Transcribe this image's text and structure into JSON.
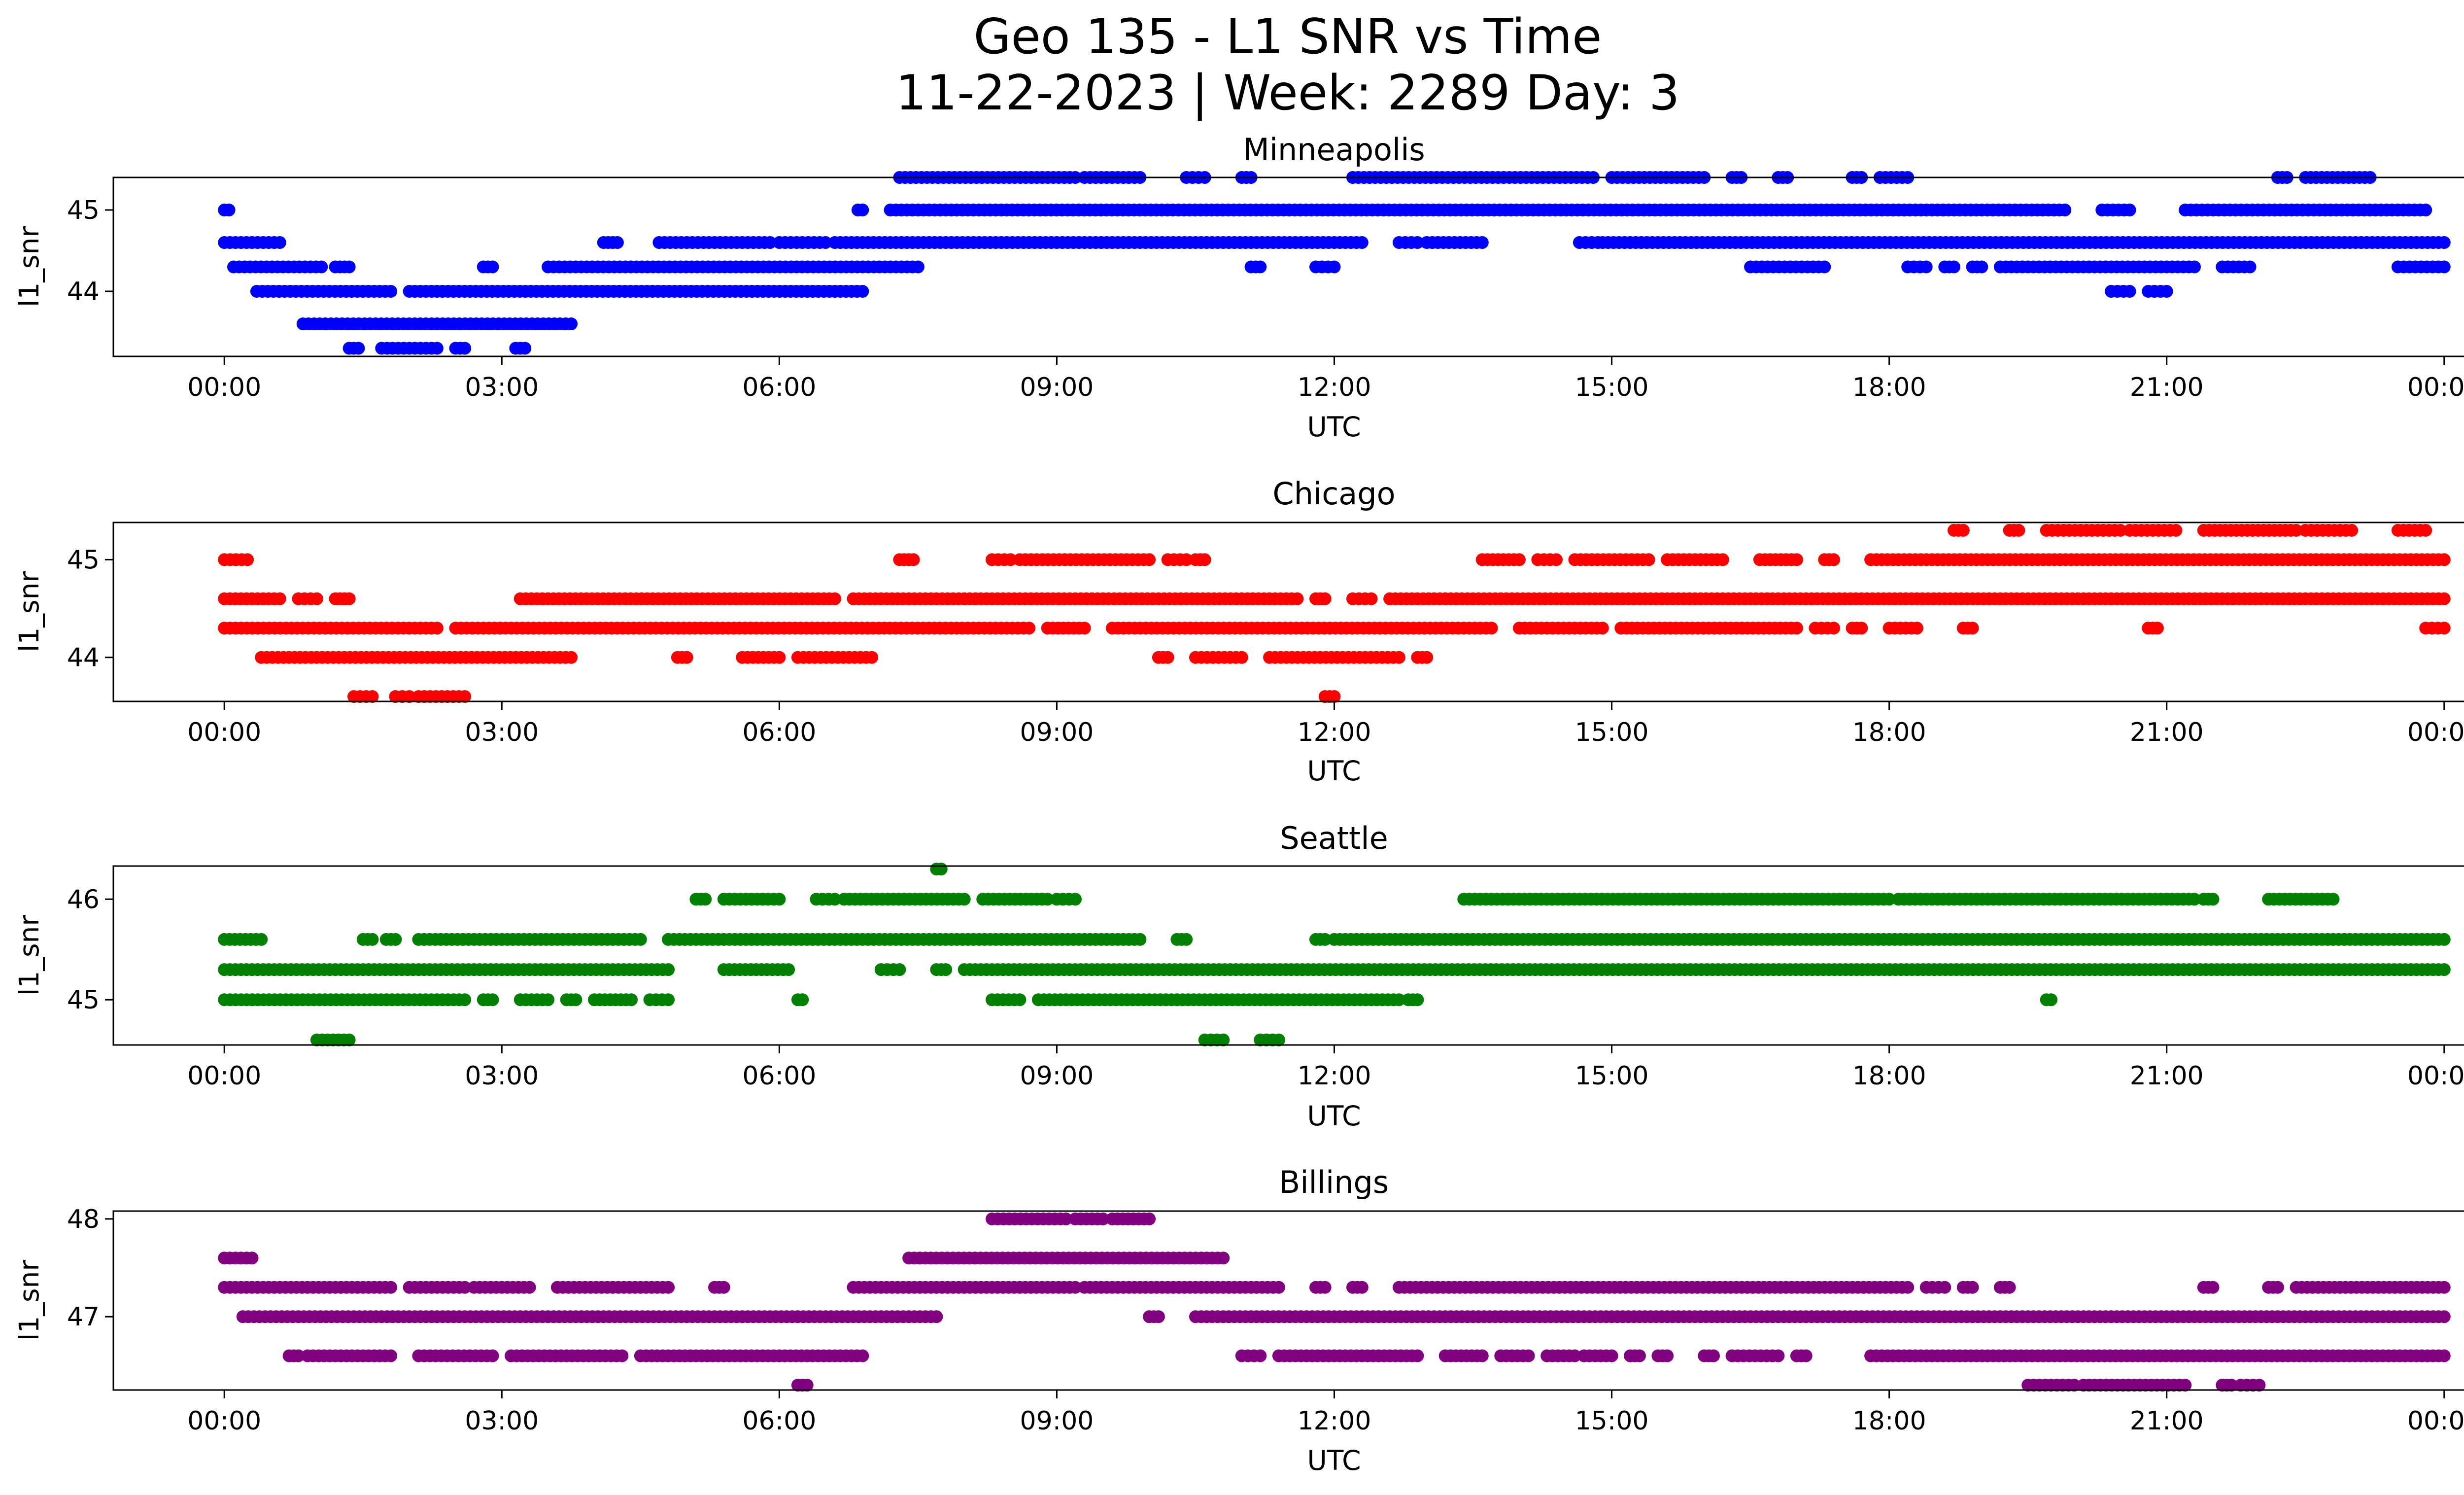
{
  "figure": {
    "title_line1": "Geo 135 - L1 SNR vs Time",
    "title_line2": "11-22-2023 | Week: 2289 Day: 3"
  },
  "chart_data": [
    {
      "type": "scatter",
      "title": "Minneapolis",
      "xlabel": "UTC",
      "ylabel": "l1_snr",
      "color": "#0000ff",
      "xlim": [
        -1.2,
        25.2
      ],
      "ylim": [
        43.2,
        45.4
      ],
      "xticks": [
        0,
        3,
        6,
        9,
        12,
        15,
        18,
        21,
        24
      ],
      "xtick_labels": [
        "00:00",
        "03:00",
        "06:00",
        "09:00",
        "12:00",
        "15:00",
        "18:00",
        "21:00",
        "00:00"
      ],
      "yticks": [
        44,
        45
      ],
      "ytick_labels": [
        "44",
        "45"
      ],
      "runs": [
        {
          "y": 45.0,
          "segments": [
            [
              0.0,
              0.05
            ],
            [
              6.85,
              6.9
            ],
            [
              7.2,
              19.9
            ],
            [
              20.3,
              20.6
            ],
            [
              21.2,
              23.8
            ]
          ]
        },
        {
          "y": 44.6,
          "segments": [
            [
              0.0,
              0.6
            ],
            [
              4.1,
              4.25
            ],
            [
              4.7,
              5.9
            ],
            [
              6.0,
              6.5
            ],
            [
              6.6,
              12.3
            ],
            [
              12.7,
              12.9
            ],
            [
              13.0,
              13.6
            ],
            [
              14.65,
              14.85
            ],
            [
              14.9,
              24.0
            ]
          ]
        },
        {
          "y": 44.3,
          "segments": [
            [
              0.1,
              1.05
            ],
            [
              1.2,
              1.35
            ],
            [
              2.8,
              2.9
            ],
            [
              3.5,
              7.5
            ],
            [
              11.1,
              11.2
            ],
            [
              11.8,
              12.0
            ],
            [
              16.5,
              17.3
            ],
            [
              18.2,
              18.4
            ],
            [
              18.6,
              18.7
            ],
            [
              18.9,
              19.0
            ],
            [
              19.2,
              21.3
            ],
            [
              21.6,
              21.9
            ],
            [
              23.5,
              24.0
            ]
          ]
        },
        {
          "y": 44.0,
          "segments": [
            [
              0.35,
              1.8
            ],
            [
              2.0,
              6.9
            ],
            [
              20.4,
              20.6
            ],
            [
              20.8,
              21.0
            ]
          ]
        },
        {
          "y": 43.6,
          "segments": [
            [
              0.85,
              3.75
            ]
          ]
        },
        {
          "y": 43.3,
          "segments": [
            [
              1.35,
              1.45
            ],
            [
              1.7,
              2.3
            ],
            [
              2.5,
              2.6
            ],
            [
              3.15,
              3.25
            ]
          ]
        },
        {
          "y": 45.4,
          "segments": [
            [
              7.3,
              9.2
            ],
            [
              9.3,
              9.9
            ],
            [
              10.4,
              10.6
            ],
            [
              11.0,
              11.1
            ],
            [
              12.2,
              14.8
            ],
            [
              15.0,
              16.0
            ],
            [
              16.3,
              16.4
            ],
            [
              16.8,
              16.9
            ],
            [
              17.6,
              17.7
            ],
            [
              17.9,
              18.2
            ],
            [
              22.2,
              22.3
            ],
            [
              22.5,
              23.2
            ]
          ]
        }
      ]
    },
    {
      "type": "scatter",
      "title": "Chicago",
      "xlabel": "UTC",
      "ylabel": "l1_snr",
      "color": "#ff0000",
      "xlim": [
        -1.2,
        25.2
      ],
      "ylim": [
        43.55,
        45.38
      ],
      "xticks": [
        0,
        3,
        6,
        9,
        12,
        15,
        18,
        21,
        24
      ],
      "xtick_labels": [
        "00:00",
        "03:00",
        "06:00",
        "09:00",
        "12:00",
        "15:00",
        "18:00",
        "21:00",
        "00:00"
      ],
      "yticks": [
        44,
        45
      ],
      "ytick_labels": [
        "44",
        "45"
      ],
      "runs": [
        {
          "y": 45.0,
          "segments": [
            [
              0.0,
              0.25
            ],
            [
              7.3,
              7.45
            ],
            [
              8.3,
              8.5
            ],
            [
              8.6,
              10.0
            ],
            [
              10.2,
              10.4
            ],
            [
              10.5,
              10.6
            ],
            [
              13.6,
              14.0
            ],
            [
              14.2,
              14.4
            ],
            [
              14.6,
              15.4
            ],
            [
              15.6,
              16.2
            ],
            [
              16.6,
              17.0
            ],
            [
              17.3,
              17.4
            ],
            [
              17.8,
              24.0
            ]
          ]
        },
        {
          "y": 44.6,
          "segments": [
            [
              0.0,
              0.6
            ],
            [
              0.8,
              1.0
            ],
            [
              1.2,
              1.35
            ],
            [
              3.2,
              6.6
            ],
            [
              6.8,
              11.6
            ],
            [
              11.8,
              11.9
            ],
            [
              12.2,
              12.4
            ],
            [
              12.6,
              24.0
            ]
          ]
        },
        {
          "y": 44.3,
          "segments": [
            [
              0.0,
              2.3
            ],
            [
              2.5,
              8.7
            ],
            [
              8.9,
              9.3
            ],
            [
              9.6,
              13.7
            ],
            [
              14.0,
              14.9
            ],
            [
              15.1,
              17.0
            ],
            [
              17.2,
              17.4
            ],
            [
              17.6,
              17.7
            ],
            [
              18.0,
              18.3
            ],
            [
              18.8,
              18.9
            ],
            [
              20.8,
              20.9
            ],
            [
              23.8,
              24.0
            ]
          ]
        },
        {
          "y": 44.0,
          "segments": [
            [
              0.4,
              3.75
            ],
            [
              4.9,
              5.0
            ],
            [
              5.6,
              6.0
            ],
            [
              6.2,
              7.0
            ],
            [
              10.1,
              10.2
            ],
            [
              10.5,
              11.0
            ],
            [
              11.3,
              12.7
            ],
            [
              12.9,
              13.0
            ]
          ]
        },
        {
          "y": 43.6,
          "segments": [
            [
              1.4,
              1.6
            ],
            [
              1.85,
              2.0
            ],
            [
              2.1,
              2.6
            ],
            [
              11.9,
              12.0
            ]
          ]
        },
        {
          "y": 45.3,
          "segments": [
            [
              18.7,
              18.8
            ],
            [
              19.3,
              19.4
            ],
            [
              19.7,
              20.5
            ],
            [
              20.6,
              21.1
            ],
            [
              21.4,
              22.4
            ],
            [
              22.5,
              23.0
            ],
            [
              23.5,
              23.8
            ]
          ]
        }
      ]
    },
    {
      "type": "scatter",
      "title": "Seattle",
      "xlabel": "UTC",
      "ylabel": "l1_snr",
      "color": "#008000",
      "xlim": [
        -1.2,
        25.2
      ],
      "ylim": [
        44.55,
        46.33
      ],
      "xticks": [
        0,
        3,
        6,
        9,
        12,
        15,
        18,
        21,
        24
      ],
      "xtick_labels": [
        "00:00",
        "03:00",
        "06:00",
        "09:00",
        "12:00",
        "15:00",
        "18:00",
        "21:00",
        "00:00"
      ],
      "yticks": [
        45,
        46
      ],
      "ytick_labels": [
        "45",
        "46"
      ],
      "runs": [
        {
          "y": 46.0,
          "segments": [
            [
              5.1,
              5.2
            ],
            [
              5.4,
              6.0
            ],
            [
              6.4,
              6.6
            ],
            [
              6.7,
              8.0
            ],
            [
              8.2,
              8.9
            ],
            [
              9.0,
              9.2
            ],
            [
              13.4,
              18.0
            ],
            [
              18.1,
              21.3
            ],
            [
              21.4,
              21.5
            ],
            [
              22.1,
              22.8
            ]
          ]
        },
        {
          "y": 45.6,
          "segments": [
            [
              0.0,
              0.4
            ],
            [
              1.5,
              1.6
            ],
            [
              1.75,
              1.85
            ],
            [
              2.1,
              4.5
            ],
            [
              4.8,
              9.9
            ],
            [
              10.3,
              10.4
            ],
            [
              11.8,
              11.9
            ],
            [
              12.0,
              24.0
            ]
          ]
        },
        {
          "y": 45.3,
          "segments": [
            [
              0.0,
              4.8
            ],
            [
              5.4,
              6.1
            ],
            [
              7.1,
              7.3
            ],
            [
              7.7,
              7.8
            ],
            [
              8.0,
              24.0
            ]
          ]
        },
        {
          "y": 45.0,
          "segments": [
            [
              0.0,
              2.6
            ],
            [
              2.8,
              2.9
            ],
            [
              3.2,
              3.5
            ],
            [
              3.7,
              3.8
            ],
            [
              4.0,
              4.4
            ],
            [
              4.6,
              4.8
            ],
            [
              6.2,
              6.25
            ],
            [
              8.3,
              8.6
            ],
            [
              8.8,
              12.7
            ],
            [
              12.8,
              12.9
            ],
            [
              19.7,
              19.75
            ]
          ]
        },
        {
          "y": 44.6,
          "segments": [
            [
              1.0,
              1.35
            ],
            [
              10.6,
              10.8
            ],
            [
              11.2,
              11.4
            ]
          ]
        },
        {
          "y": 46.3,
          "segments": [
            [
              7.7,
              7.75
            ]
          ]
        }
      ]
    },
    {
      "type": "scatter",
      "title": "Billings",
      "xlabel": "UTC",
      "ylabel": "l1_snr",
      "color": "#800080",
      "xlim": [
        -1.2,
        25.2
      ],
      "ylim": [
        46.25,
        48.08
      ],
      "xticks": [
        0,
        3,
        6,
        9,
        12,
        15,
        18,
        21,
        24
      ],
      "xtick_labels": [
        "00:00",
        "03:00",
        "06:00",
        "09:00",
        "12:00",
        "15:00",
        "18:00",
        "21:00",
        "00:00"
      ],
      "yticks": [
        47,
        48
      ],
      "ytick_labels": [
        "47",
        "48"
      ],
      "runs": [
        {
          "y": 48.0,
          "segments": [
            [
              8.3,
              9.1
            ],
            [
              9.2,
              9.5
            ],
            [
              9.6,
              10.0
            ]
          ]
        },
        {
          "y": 47.6,
          "segments": [
            [
              0.0,
              0.3
            ],
            [
              7.4,
              10.8
            ]
          ]
        },
        {
          "y": 47.3,
          "segments": [
            [
              0.0,
              1.8
            ],
            [
              2.0,
              2.6
            ],
            [
              2.7,
              3.3
            ],
            [
              3.6,
              4.8
            ],
            [
              5.3,
              5.4
            ],
            [
              6.8,
              9.2
            ],
            [
              9.3,
              11.4
            ],
            [
              11.8,
              11.9
            ],
            [
              12.2,
              12.3
            ],
            [
              12.7,
              18.2
            ],
            [
              18.4,
              18.6
            ],
            [
              18.8,
              18.9
            ],
            [
              19.2,
              19.3
            ],
            [
              21.4,
              21.5
            ],
            [
              22.1,
              22.2
            ],
            [
              22.4,
              24.0
            ]
          ]
        },
        {
          "y": 47.0,
          "segments": [
            [
              0.2,
              7.7
            ],
            [
              10.0,
              10.1
            ],
            [
              10.5,
              24.0
            ]
          ]
        },
        {
          "y": 46.6,
          "segments": [
            [
              0.7,
              0.8
            ],
            [
              0.9,
              1.8
            ],
            [
              2.1,
              2.9
            ],
            [
              3.1,
              4.3
            ],
            [
              4.5,
              6.9
            ],
            [
              11.0,
              11.2
            ],
            [
              11.4,
              12.9
            ],
            [
              13.2,
              13.6
            ],
            [
              13.8,
              14.1
            ],
            [
              14.3,
              14.6
            ],
            [
              14.7,
              15.0
            ],
            [
              15.2,
              15.3
            ],
            [
              15.5,
              15.6
            ],
            [
              16.0,
              16.1
            ],
            [
              16.3,
              16.8
            ],
            [
              17.0,
              17.1
            ],
            [
              17.8,
              24.0
            ]
          ]
        },
        {
          "y": 46.3,
          "segments": [
            [
              6.2,
              6.3
            ],
            [
              19.5,
              20.0
            ],
            [
              20.1,
              21.2
            ],
            [
              21.6,
              21.7
            ],
            [
              21.8,
              22.0
            ]
          ]
        }
      ]
    }
  ]
}
